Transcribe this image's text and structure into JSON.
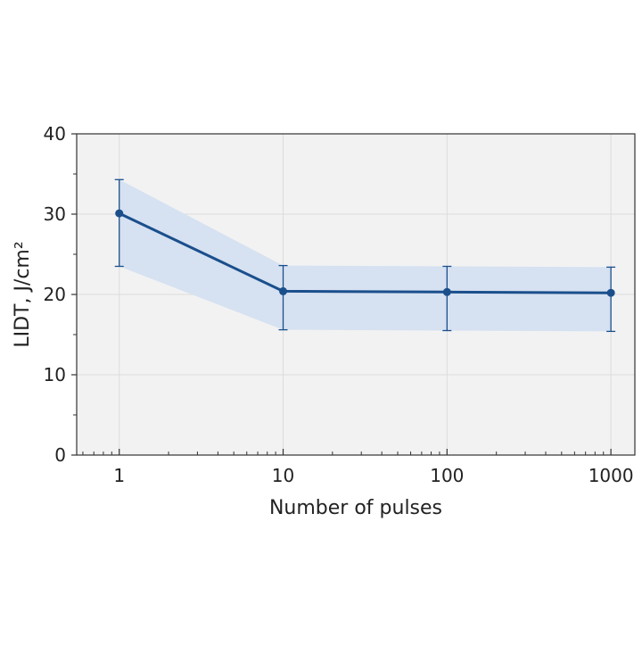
{
  "chart_data": {
    "type": "line",
    "title": "",
    "xlabel": "Number of pulses",
    "ylabel": "LIDT, J/cm²",
    "x_scale": "log",
    "xlim": [
      0.55,
      1400
    ],
    "ylim": [
      0,
      40
    ],
    "x_ticks": [
      {
        "value": 1,
        "label": "1"
      },
      {
        "value": 10,
        "label": "10"
      },
      {
        "value": 100,
        "label": "100"
      },
      {
        "value": 1000,
        "label": "1000"
      }
    ],
    "y_ticks": [
      {
        "value": 0,
        "label": "0"
      },
      {
        "value": 10,
        "label": "10"
      },
      {
        "value": 20,
        "label": "20"
      },
      {
        "value": 30,
        "label": "30"
      },
      {
        "value": 40,
        "label": "40"
      }
    ],
    "y_minor_ticks": [
      5,
      15,
      25,
      35
    ],
    "grid": true,
    "legend": "none",
    "series": [
      {
        "x": [
          1,
          10,
          100,
          1000
        ],
        "y": [
          30.1,
          20.4,
          20.3,
          20.2
        ],
        "y_upper": [
          34.3,
          23.6,
          23.5,
          23.4
        ],
        "y_lower": [
          23.5,
          15.6,
          15.5,
          15.4
        ],
        "color": "#1a4f8c",
        "band_color": "#d6e1f1"
      }
    ],
    "plot_background": "#f2f2f2"
  }
}
